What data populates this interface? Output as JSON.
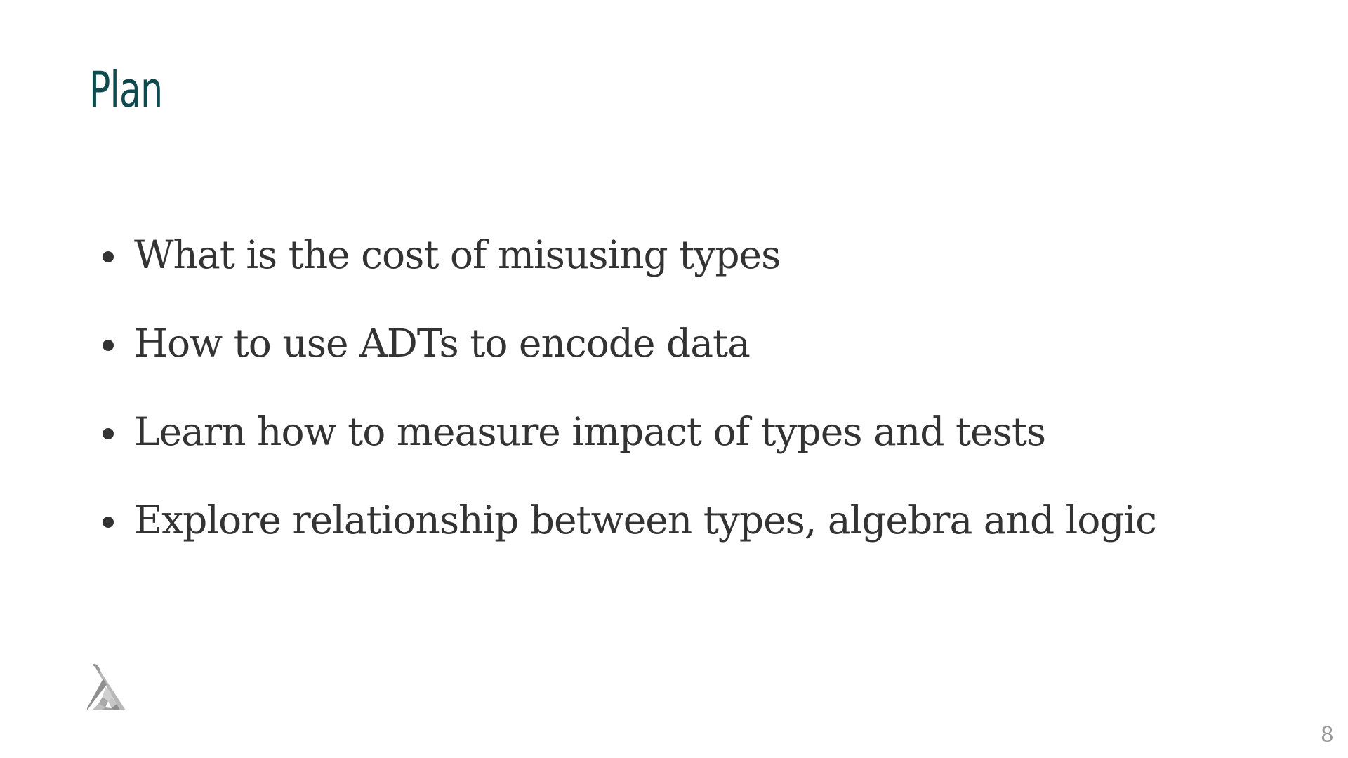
{
  "slide": {
    "title": "Plan",
    "bullets": [
      {
        "text": "What is the cost of misusing types"
      },
      {
        "text": "How to use ADTs to encode data"
      },
      {
        "text": "Learn how to measure impact of types and tests"
      },
      {
        "text": "Explore relationship between types, algebra and logic"
      }
    ],
    "logo_icon": "lambda-logo-icon",
    "page_number": "8"
  },
  "colors": {
    "title": "#0f4a4f",
    "body_text": "#333333",
    "page_number": "#999999",
    "background": "#ffffff"
  }
}
